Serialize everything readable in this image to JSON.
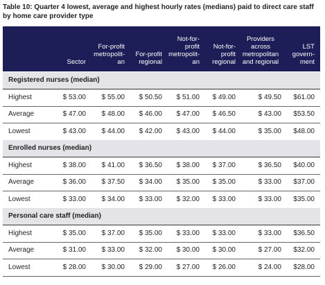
{
  "title": [
    "Table 10: Quarter 4 lowest, average and highest hourly rates (medians) paid to direct care staff",
    "by home care provider type"
  ],
  "table": {
    "header": [
      [],
      [
        "Sector"
      ],
      [
        "For-profit",
        "metropolit-",
        "an"
      ],
      [
        "For-profit",
        "regional"
      ],
      [
        "Not-for-",
        "profit",
        "metropolit-",
        "an"
      ],
      [
        "Not-for-",
        "profit",
        "regional"
      ],
      [
        "Providers",
        "across",
        "metropolitan",
        "and regional"
      ],
      [
        "LST",
        "govern-",
        "ment"
      ]
    ],
    "sections": [
      {
        "label": "Registered nurses (median)",
        "rows": [
          [
            "Highest",
            "$ 53.00",
            "$ 55.00",
            "$ 50.50",
            "$ 51.00",
            "$ 49.00",
            "$ 49.50",
            "$61.00"
          ],
          [
            "Average",
            "$ 47.00",
            "$ 48.00",
            "$ 46.00",
            "$ 47.00",
            "$ 46.50",
            "$ 43.00",
            "$53.50"
          ],
          [
            "Lowest",
            "$ 43.00",
            "$ 44.00",
            "$ 42.00",
            "$ 43.00",
            "$ 44.00",
            "$ 35.00",
            "$48.00"
          ]
        ]
      },
      {
        "label": "Enrolled nurses (median)",
        "rows": [
          [
            "Highest",
            "$ 38.00",
            "$ 41.00",
            "$ 36.50",
            "$ 38.00",
            "$ 37.00",
            "$ 36.50",
            "$40.00"
          ],
          [
            "Average",
            "$ 36.00",
            "$ 37.50",
            "$ 34.00",
            "$ 35.00",
            "$ 35.00",
            "$ 33.00",
            "$37.00"
          ],
          [
            "Lowest",
            "$ 33.00",
            "$ 34.00",
            "$ 33.00",
            "$ 32.00",
            "$ 33.00",
            "$ 33.00",
            "$35.00"
          ]
        ]
      },
      {
        "label": "Personal care staff (median)",
        "rows": [
          [
            "Highest",
            "$ 35.00",
            "$ 37.00",
            "$ 35.00",
            "$ 33.00",
            "$ 33.00",
            "$ 33.00",
            "$36.50"
          ],
          [
            "Average",
            "$ 31.00",
            "$ 33.00",
            "$ 32.00",
            "$ 30.00",
            "$ 30.00",
            "$ 27.00",
            "$32.00"
          ],
          [
            "Lowest",
            "$ 28.00",
            "$ 30.00",
            "$ 29.00",
            "$ 27.00",
            "$ 26.00",
            "$ 24.00",
            "$28.00"
          ]
        ]
      }
    ]
  }
}
